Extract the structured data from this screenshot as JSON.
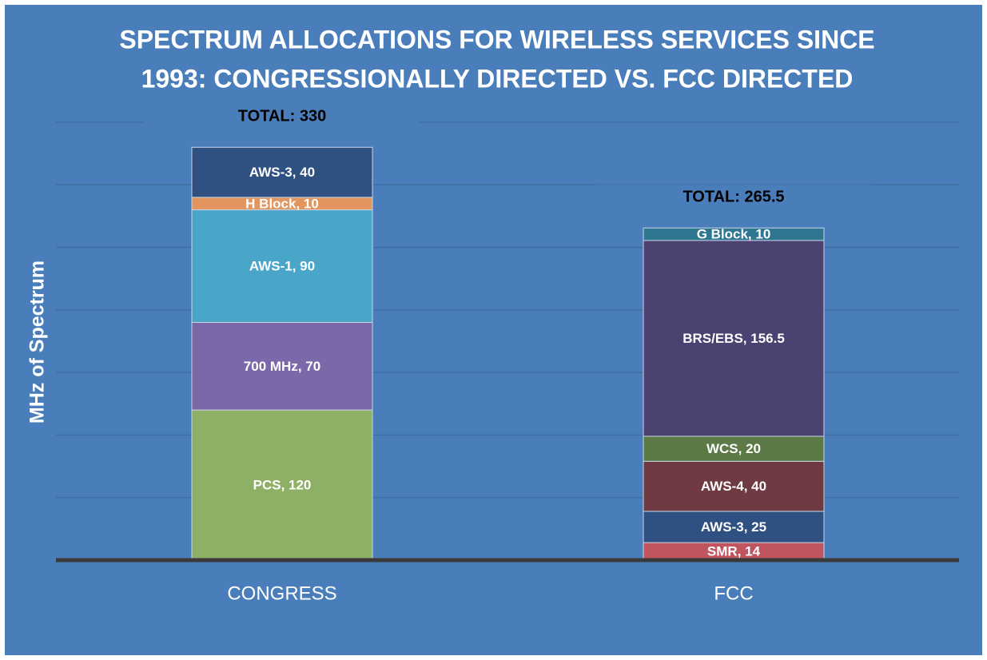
{
  "chart_data": {
    "type": "stacked_bar",
    "title": [
      "SPECTRUM ALLOCATIONS FOR WIRELESS SERVICES SINCE",
      "1993: CONGRESSIONALLY DIRECTED VS. FCC DIRECTED"
    ],
    "y_label": "MHz of Spectrum",
    "ylim": [
      0,
      350
    ],
    "yticks": [
      0,
      50,
      100,
      150,
      200,
      250,
      300,
      350
    ],
    "grid": true,
    "bars": [
      {
        "category": "CONGRESS",
        "total": {
          "value": 330,
          "label": "TOTAL: 330"
        },
        "segments": [
          {
            "name": "PCS",
            "value": 120,
            "value_label": "PCS, 120",
            "color": "#8db066"
          },
          {
            "name": "700 MHz",
            "value": 70,
            "value_label": "700 MHz, 70",
            "color": "#7b68a8"
          },
          {
            "name": "AWS-1",
            "value": 90,
            "value_label": "AWS-1, 90",
            "color": "#4aa6c9"
          },
          {
            "name": "H Block",
            "value": 10,
            "value_label": "H Block, 10",
            "color": "#e2955c"
          },
          {
            "name": "AWS-3",
            "value": 40,
            "value_label": "AWS-3, 40",
            "color": "#2e5182"
          }
        ]
      },
      {
        "category": "FCC",
        "total": {
          "value": 265.5,
          "label": "TOTAL: 265.5"
        },
        "segments": [
          {
            "name": "SMR",
            "value": 14,
            "value_label": "SMR, 14",
            "color": "#c0555f"
          },
          {
            "name": "AWS-3",
            "value": 25,
            "value_label": "AWS-3, 25",
            "color": "#2e5182"
          },
          {
            "name": "AWS-4",
            "value": 40,
            "value_label": "AWS-4, 40",
            "color": "#6f3a41"
          },
          {
            "name": "WCS",
            "value": 20,
            "value_label": "WCS, 20",
            "color": "#5b7a45"
          },
          {
            "name": "BRS/EBS",
            "value": 156.5,
            "value_label": "BRS/EBS, 156.5",
            "color": "#4b4271"
          },
          {
            "name": "G Block",
            "value": 10,
            "value_label": "G Block, 10",
            "color": "#2f7690"
          }
        ]
      }
    ]
  }
}
